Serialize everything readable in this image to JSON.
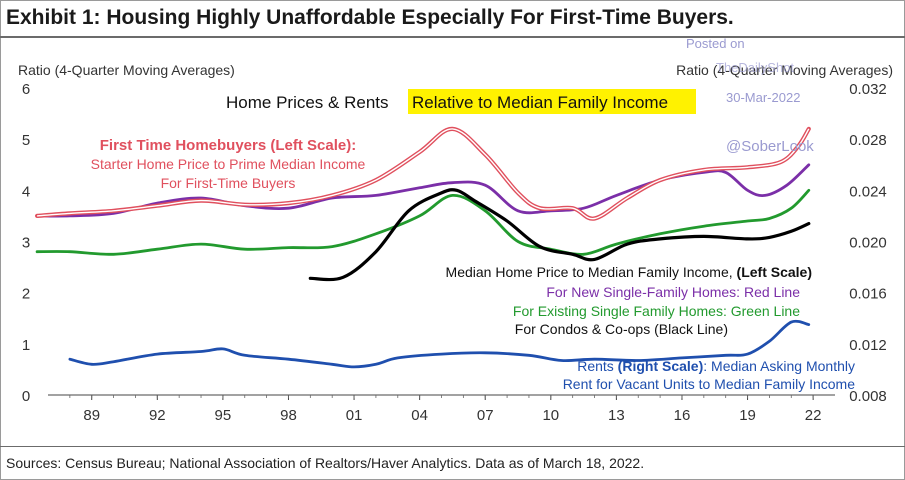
{
  "exhibit_title": "Exhibit 1: Housing Highly Unaffordable Especially For First-Time Buyers.",
  "source_note": "Sources: Census Bureau; National Association of Realtors/Haver Analytics. Data as of March 18, 2022.",
  "watermark": {
    "posted_on": "Posted on",
    "site": "TheDailyShot",
    "date": "30-Mar-2022",
    "handle": "@SoberLook"
  },
  "colors": {
    "first_time": "#e0505e",
    "new_single": "#7b2fa8",
    "existing_single": "#229a2e",
    "condos": "#000000",
    "rents": "#1f4fae",
    "highlight": "#fff200",
    "axis": "#333333"
  },
  "chart_data": {
    "type": "line",
    "title": "Home Prices & Rents Relative to Median Family Income",
    "title_plain": "Home Prices & Rents ",
    "title_highlight": "Relative to Median Family Income",
    "ylabel_left": "Ratio (4-Quarter Moving Averages)",
    "ylabel_right": "Ratio (4-Quarter Moving Averages)",
    "xlim": [
      1987,
      2023
    ],
    "ylim_left": [
      0,
      6
    ],
    "ylim_right": [
      0.008,
      0.032
    ],
    "x_ticks": [
      1989,
      1992,
      1995,
      1998,
      2001,
      2004,
      2007,
      2010,
      2013,
      2016,
      2019,
      2022
    ],
    "x_tick_labels": [
      "89",
      "92",
      "95",
      "98",
      "01",
      "04",
      "07",
      "10",
      "13",
      "16",
      "19",
      "22"
    ],
    "y_ticks_left": [
      "0",
      "1",
      "2",
      "3",
      "4",
      "5",
      "6"
    ],
    "y_ticks_right": [
      "0.008",
      "0.012",
      "0.016",
      "0.020",
      "0.024",
      "0.028",
      "0.032"
    ],
    "grid": false,
    "annotations": {
      "first_time": [
        "First Time Homebuyers (Left Scale):",
        "Starter Home Price to Prime Median Income",
        "For First-Time Buyers"
      ],
      "median_label": "Median Home Price  to  Median Family Income, ",
      "median_label_bold": "(Left Scale)",
      "new_single": "For New Single-Family Homes: Red Line",
      "existing_single": "For Existing Single Family Homes: Green Line",
      "condos": "For Condos & Co-ops (Black Line)",
      "rents_line1_bold": "Rents ",
      "rents_line1_bold2": "(Right Scale)",
      "rents_line1_rest": ": Median Asking Monthly",
      "rents_line2": "Rent for Vacant Units  to  Median Family Income"
    },
    "series": [
      {
        "key": "first_time",
        "axis": "left",
        "x": [
          1986.5,
          1988,
          1990,
          1992,
          1994,
          1996,
          1998,
          2000,
          2002,
          2004,
          2005.5,
          2007,
          2008.5,
          2009.5,
          2011,
          2012,
          2013.5,
          2015,
          2017,
          2019,
          2020.5,
          2021.3,
          2021.8
        ],
        "values": [
          3.5,
          3.55,
          3.6,
          3.7,
          3.8,
          3.72,
          3.75,
          3.9,
          4.2,
          4.75,
          5.2,
          4.7,
          3.95,
          3.65,
          3.65,
          3.45,
          3.85,
          4.2,
          4.4,
          4.45,
          4.55,
          4.85,
          5.2
        ]
      },
      {
        "key": "new_single",
        "axis": "left",
        "x": [
          1986.5,
          1988,
          1990,
          1992,
          1994,
          1996,
          1998,
          2000,
          2002,
          2004,
          2005.5,
          2007,
          2008.5,
          2010,
          2011.5,
          2013,
          2015,
          2017,
          2018,
          2019,
          2019.8,
          2020.8,
          2021.8
        ],
        "values": [
          3.5,
          3.5,
          3.55,
          3.75,
          3.85,
          3.7,
          3.65,
          3.85,
          3.9,
          4.05,
          4.15,
          4.1,
          3.6,
          3.6,
          3.65,
          3.9,
          4.2,
          4.35,
          4.35,
          4.0,
          3.9,
          4.1,
          4.5
        ]
      },
      {
        "key": "existing_single",
        "axis": "left",
        "x": [
          1986.5,
          1988,
          1990,
          1992,
          1994,
          1996,
          1998,
          2000,
          2002,
          2004,
          2005.5,
          2007,
          2008.5,
          2010,
          2011.5,
          2013,
          2015,
          2017,
          2019,
          2020,
          2021,
          2021.8
        ],
        "values": [
          2.8,
          2.8,
          2.75,
          2.85,
          2.95,
          2.85,
          2.88,
          2.9,
          3.15,
          3.5,
          3.9,
          3.6,
          3.0,
          2.85,
          2.75,
          2.95,
          3.15,
          3.3,
          3.4,
          3.45,
          3.65,
          4.0
        ]
      },
      {
        "key": "condos",
        "axis": "left",
        "x": [
          1999,
          2000.5,
          2002,
          2003.5,
          2005,
          2005.7,
          2006.5,
          2008,
          2009.5,
          2011,
          2012,
          2013.5,
          2015,
          2017,
          2019,
          2020,
          2021,
          2021.8
        ],
        "values": [
          2.28,
          2.3,
          2.8,
          3.6,
          3.95,
          4.0,
          3.8,
          3.4,
          2.9,
          2.75,
          2.65,
          2.95,
          3.05,
          3.1,
          3.05,
          3.08,
          3.2,
          3.35
        ]
      },
      {
        "key": "rents",
        "axis": "right",
        "x": [
          1988,
          1989,
          1990,
          1992,
          1994,
          1995,
          1996,
          1998,
          2000,
          2001,
          2002,
          2003,
          2005,
          2007,
          2009,
          2010.5,
          2012,
          2014,
          2016,
          2018,
          2019,
          2020,
          2021,
          2021.8
        ],
        "values": [
          0.0108,
          0.0104,
          0.0106,
          0.0112,
          0.0114,
          0.0116,
          0.0111,
          0.0108,
          0.0104,
          0.0102,
          0.0104,
          0.0109,
          0.0112,
          0.0113,
          0.0111,
          0.0107,
          0.0108,
          0.0107,
          0.0109,
          0.0111,
          0.0112,
          0.0122,
          0.0137,
          0.0135
        ]
      }
    ]
  }
}
